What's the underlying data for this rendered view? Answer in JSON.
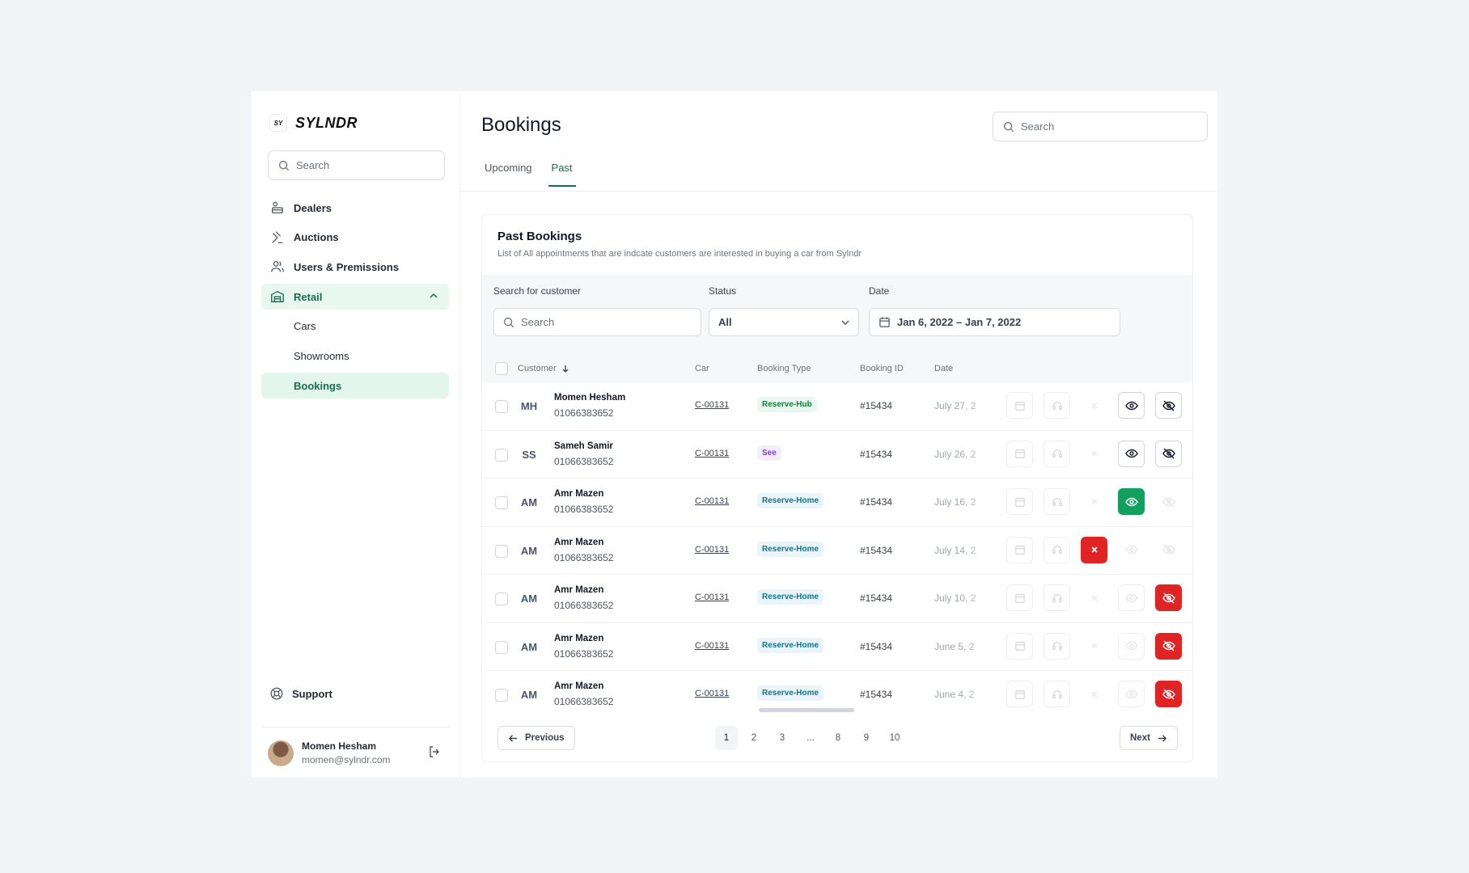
{
  "brand": {
    "badge": "SY",
    "name": "SYLNDR"
  },
  "sidebar": {
    "search_placeholder": "Search",
    "items": [
      {
        "label": "Dealers"
      },
      {
        "label": "Auctions"
      },
      {
        "label": "Users & Premissions"
      },
      {
        "label": "Retail"
      }
    ],
    "sub_items": [
      {
        "label": "Cars"
      },
      {
        "label": "Showrooms"
      },
      {
        "label": "Bookings"
      }
    ],
    "support": "Support",
    "user": {
      "name": "Momen Hesham",
      "email": "momen@sylndr.com"
    }
  },
  "header": {
    "title": "Bookings",
    "search_placeholder": "Search"
  },
  "tabs": [
    {
      "label": "Upcoming"
    },
    {
      "label": "Past"
    }
  ],
  "card": {
    "title": "Past Bookings",
    "subtitle": "List of All appointments that are indcate customers are interested in buying a car from Sylndr"
  },
  "filters": {
    "customer_label": "Search for customer",
    "customer_placeholder": "Search",
    "status_label": "Status",
    "status_value": "All",
    "date_label": "Date",
    "date_value": "Jan 6, 2022 – Jan 7, 2022"
  },
  "table": {
    "headers": {
      "customer": "Customer",
      "car": "Car",
      "booking_type": "Booking Type",
      "booking_id": "Booking ID",
      "date": "Date"
    },
    "rows": [
      {
        "initials": "MH",
        "name": "Momen Hesham",
        "phone": "01066383652",
        "car": "C-00131",
        "type": "Reserve-Hub",
        "id": "#15434",
        "date": "July 27, 2"
      },
      {
        "initials": "SS",
        "name": "Sameh Samir",
        "phone": "01066383652",
        "car": "C-00131",
        "type": "See",
        "id": "#15434",
        "date": "July 26, 2"
      },
      {
        "initials": "AM",
        "name": "Amr Mazen",
        "phone": "01066383652",
        "car": "C-00131",
        "type": "Reserve-Home",
        "id": "#15434",
        "date": "July 16, 2"
      },
      {
        "initials": "AM",
        "name": "Amr Mazen",
        "phone": "01066383652",
        "car": "C-00131",
        "type": "Reserve-Home",
        "id": "#15434",
        "date": "July 14, 2"
      },
      {
        "initials": "AM",
        "name": "Amr Mazen",
        "phone": "01066383652",
        "car": "C-00131",
        "type": "Reserve-Home",
        "id": "#15434",
        "date": "July 10, 2"
      },
      {
        "initials": "AM",
        "name": "Amr Mazen",
        "phone": "01066383652",
        "car": "C-00131",
        "type": "Reserve-Home",
        "id": "#15434",
        "date": "June 5, 2"
      },
      {
        "initials": "AM",
        "name": "Amr Mazen",
        "phone": "01066383652",
        "car": "C-00131",
        "type": "Reserve-Home",
        "id": "#15434",
        "date": "June 4, 2"
      }
    ]
  },
  "pagination": {
    "previous": "Previous",
    "next": "Next",
    "pages": [
      "1",
      "2",
      "3",
      "...",
      "8",
      "9",
      "10"
    ]
  },
  "colors": {
    "accent": "#14704c",
    "green": "#13a05e",
    "red": "#e02424"
  }
}
